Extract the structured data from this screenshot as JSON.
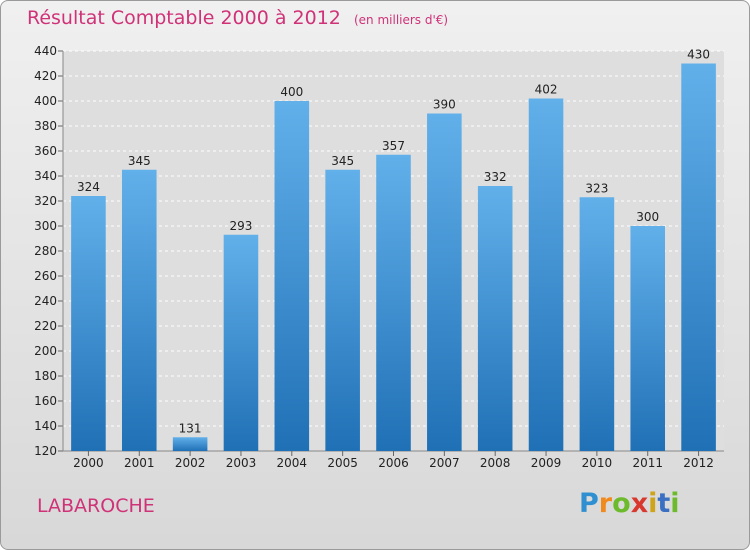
{
  "header": {
    "title": "Résultat Comptable 2000 à 2012",
    "subtitle": "(en milliers d'€)"
  },
  "footer": {
    "commune": "LABAROCHE",
    "logo_text": "Proxiti"
  },
  "colors": {
    "accent": "#d03278",
    "bar_top": "#62b0ea",
    "bar_bottom": "#2070b6",
    "background_top": "#f0f0f0",
    "background_bottom": "#d8d8d8"
  },
  "chart_data": {
    "type": "bar",
    "title": "Résultat Comptable 2000 à 2012",
    "subtitle": "(en milliers d'€)",
    "categories": [
      "2000",
      "2001",
      "2002",
      "2003",
      "2004",
      "2005",
      "2006",
      "2007",
      "2008",
      "2009",
      "2010",
      "2011",
      "2012"
    ],
    "values": [
      324,
      345,
      131,
      293,
      400,
      345,
      357,
      390,
      332,
      402,
      323,
      300,
      430
    ],
    "xlabel": "",
    "ylabel": "",
    "ylim": [
      120,
      440
    ],
    "yticks": [
      120,
      140,
      160,
      180,
      200,
      220,
      240,
      260,
      280,
      300,
      320,
      340,
      360,
      380,
      400,
      420,
      440
    ],
    "grid": true,
    "data_labels": true
  }
}
